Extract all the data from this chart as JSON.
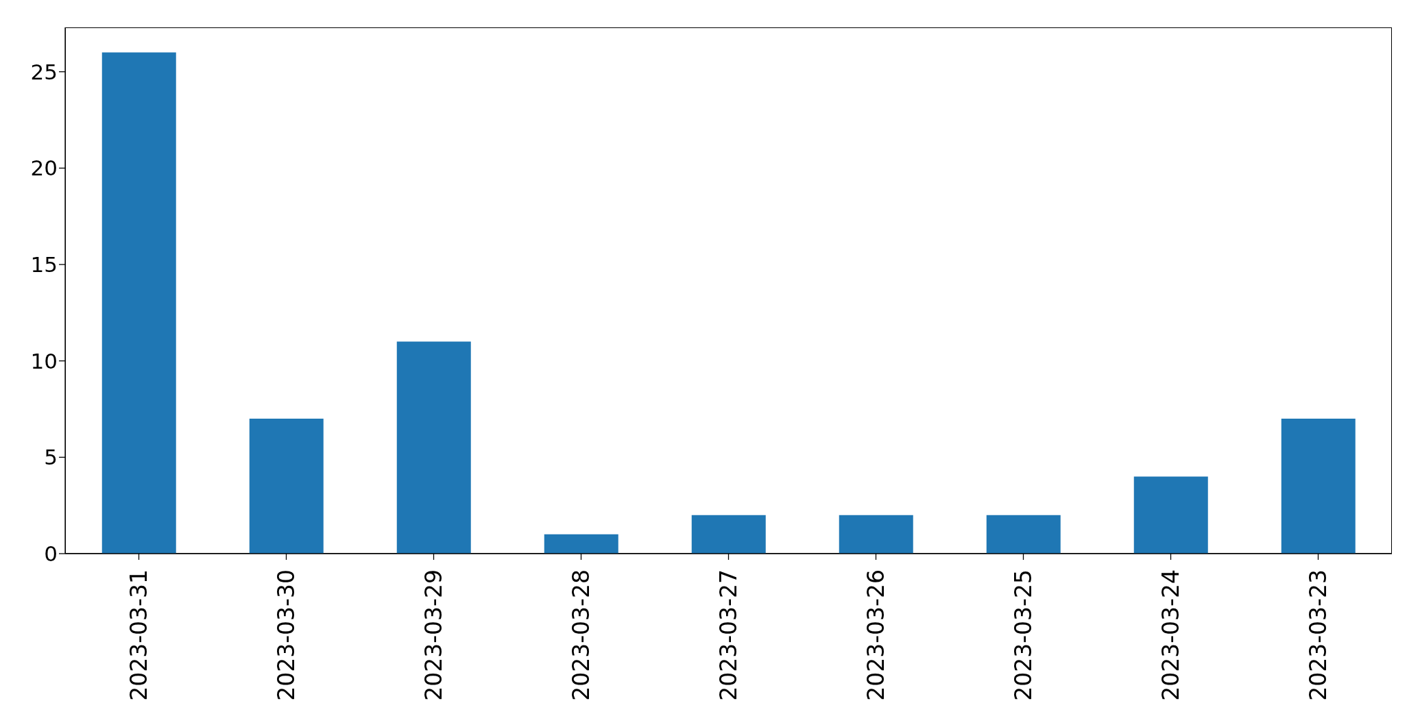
{
  "chart_data": {
    "type": "bar",
    "categories": [
      "2023-03-31",
      "2023-03-30",
      "2023-03-29",
      "2023-03-28",
      "2023-03-27",
      "2023-03-26",
      "2023-03-25",
      "2023-03-24",
      "2023-03-23"
    ],
    "values": [
      26,
      7,
      11,
      1,
      2,
      2,
      2,
      4,
      7
    ],
    "color": "#1f77b4",
    "ylim": [
      0,
      27.3
    ],
    "yticks": [
      0,
      5,
      10,
      15,
      20,
      25
    ],
    "grid": false
  }
}
